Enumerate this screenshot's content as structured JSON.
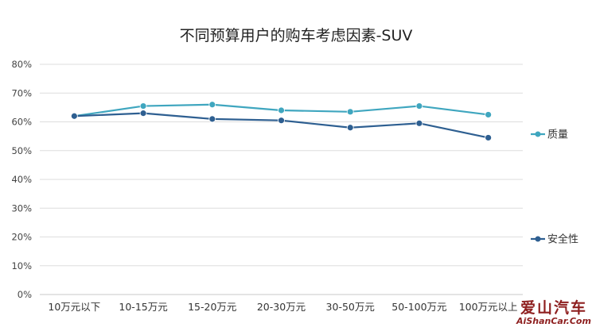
{
  "chart_data": {
    "type": "line",
    "title": "不同预算用户的购车考虑因素-SUV",
    "xlabel": "",
    "ylabel": "",
    "categories": [
      "10万元以下",
      "10-15万元",
      "15-20万元",
      "20-30万元",
      "30-50万元",
      "50-100万元",
      "100万元以上"
    ],
    "y_ticks": [
      "0%",
      "10%",
      "20%",
      "30%",
      "40%",
      "50%",
      "60%",
      "70%",
      "80%"
    ],
    "ylim": [
      0,
      80
    ],
    "grid": "horizontal",
    "legend_position": "right",
    "series": [
      {
        "name": "质量",
        "color": "#3fa6bf",
        "values": [
          62,
          65.5,
          66,
          64,
          63.5,
          65.5,
          62.5
        ]
      },
      {
        "name": "安全性",
        "color": "#2e5f91",
        "values": [
          62,
          63,
          61,
          60.5,
          58,
          59.5,
          54.5
        ]
      }
    ]
  },
  "watermark": {
    "text_cn": "爱山汽车",
    "text_en": "AiShanCar.Com"
  }
}
